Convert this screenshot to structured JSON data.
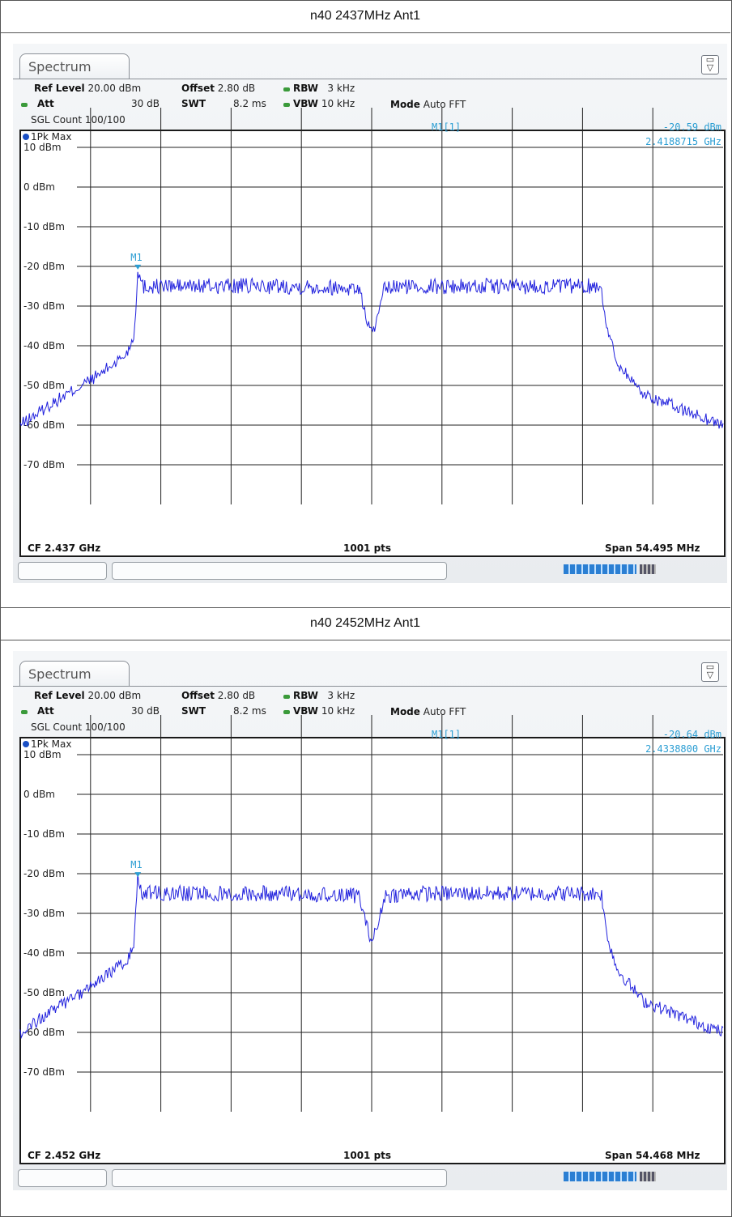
{
  "sections": [
    {
      "heading": "n40 2437MHz Ant1",
      "window_tab": "Spectrum",
      "settings": {
        "ref_level_label": "Ref Level",
        "ref_level": "20.00 dBm",
        "offset_label": "Offset",
        "offset": "2.80 dB",
        "rbw_label": "RBW",
        "rbw": "3 kHz",
        "att_label": "Att",
        "att": "30 dB",
        "swt_label": "SWT",
        "swt": "8.2 ms",
        "vbw_label": "VBW",
        "vbw": "10 kHz",
        "mode_label": "Mode",
        "mode": "Auto FFT",
        "sgl_count": "SGL Count 100/100"
      },
      "trace_label": "1Pk Max",
      "marker": {
        "label": "M1",
        "readout_label": "M1[1]",
        "level": "-20.59 dBm",
        "freq": "2.4188715 GHz"
      },
      "footer": {
        "cf": "CF 2.437 GHz",
        "pts": "1001 pts",
        "span": "Span 54.495 MHz"
      }
    },
    {
      "heading": "n40 2452MHz Ant1",
      "window_tab": "Spectrum",
      "settings": {
        "ref_level_label": "Ref Level",
        "ref_level": "20.00 dBm",
        "offset_label": "Offset",
        "offset": "2.80 dB",
        "rbw_label": "RBW",
        "rbw": "3 kHz",
        "att_label": "Att",
        "att": "30 dB",
        "swt_label": "SWT",
        "swt": "8.2 ms",
        "vbw_label": "VBW",
        "vbw": "10 kHz",
        "mode_label": "Mode",
        "mode": "Auto FFT",
        "sgl_count": "SGL Count 100/100"
      },
      "trace_label": "1Pk Max",
      "marker": {
        "label": "M1",
        "readout_label": "M1[1]",
        "level": "-20.64 dBm",
        "freq": "2.4338800 GHz"
      },
      "footer": {
        "cf": "CF 2.452 GHz",
        "pts": "1001 pts",
        "span": "Span 54.468 MHz"
      }
    }
  ],
  "chart_data": [
    {
      "type": "line",
      "title": "n40 2437MHz Ant1",
      "xlabel": "",
      "ylabel": "",
      "xlim": [
        2409.7525,
        2464.2475
      ],
      "ylim": [
        -80,
        20
      ],
      "ytick_labels": [
        "10 dBm",
        "0 dBm",
        "-10 dBm",
        "-20 dBm",
        "-30 dBm",
        "-40 dBm",
        "-50 dBm",
        "-60 dBm",
        "-70 dBm"
      ],
      "yticks": [
        10,
        0,
        -10,
        -20,
        -30,
        -40,
        -50,
        -60,
        -70
      ],
      "grid": true,
      "trace_color": "#2222dd",
      "marker_color": "#2c9ed3",
      "series": [
        {
          "x": [
            2409.75,
            2412.0,
            2414.0,
            2416.0,
            2418.0,
            2418.6,
            2418.87,
            2419.2,
            2425.0,
            2431.0,
            2436.0,
            2436.6,
            2437.0,
            2437.5,
            2438.0,
            2440.0,
            2446.0,
            2452.0,
            2454.8,
            2455.2,
            2456.0,
            2458.0,
            2461.0,
            2464.25
          ],
          "y": [
            -60,
            -55,
            -51,
            -47,
            -42,
            -37,
            -20.59,
            -25,
            -25,
            -25,
            -25.5,
            -33,
            -37,
            -33,
            -25.5,
            -25,
            -25,
            -25,
            -25,
            -35,
            -44,
            -52,
            -56,
            -60
          ]
        }
      ],
      "marker": {
        "x": 2418.87,
        "y": -20.59
      }
    },
    {
      "type": "line",
      "title": "n40 2452MHz Ant1",
      "xlabel": "",
      "ylabel": "",
      "xlim": [
        2424.766,
        2479.234
      ],
      "ylim": [
        -80,
        20
      ],
      "ytick_labels": [
        "10 dBm",
        "0 dBm",
        "-10 dBm",
        "-20 dBm",
        "-30 dBm",
        "-40 dBm",
        "-50 dBm",
        "-60 dBm",
        "-70 dBm"
      ],
      "yticks": [
        10,
        0,
        -10,
        -20,
        -30,
        -40,
        -50,
        -60,
        -70
      ],
      "grid": true,
      "trace_color": "#2222dd",
      "marker_color": "#2c9ed3",
      "series": [
        {
          "x": [
            2424.77,
            2427.0,
            2429.0,
            2431.0,
            2433.0,
            2433.6,
            2433.88,
            2434.2,
            2440.0,
            2446.0,
            2451.0,
            2451.6,
            2452.0,
            2452.5,
            2453.0,
            2455.0,
            2461.0,
            2467.0,
            2469.8,
            2470.2,
            2471.0,
            2473.0,
            2476.0,
            2479.23
          ],
          "y": [
            -60,
            -55,
            -51,
            -47,
            -42,
            -37,
            -20.64,
            -25,
            -25,
            -25,
            -25.5,
            -33,
            -37,
            -33,
            -25.5,
            -25,
            -25,
            -25,
            -25,
            -35,
            -44,
            -52,
            -56,
            -60
          ]
        }
      ],
      "marker": {
        "x": 2433.88,
        "y": -20.64
      }
    }
  ]
}
